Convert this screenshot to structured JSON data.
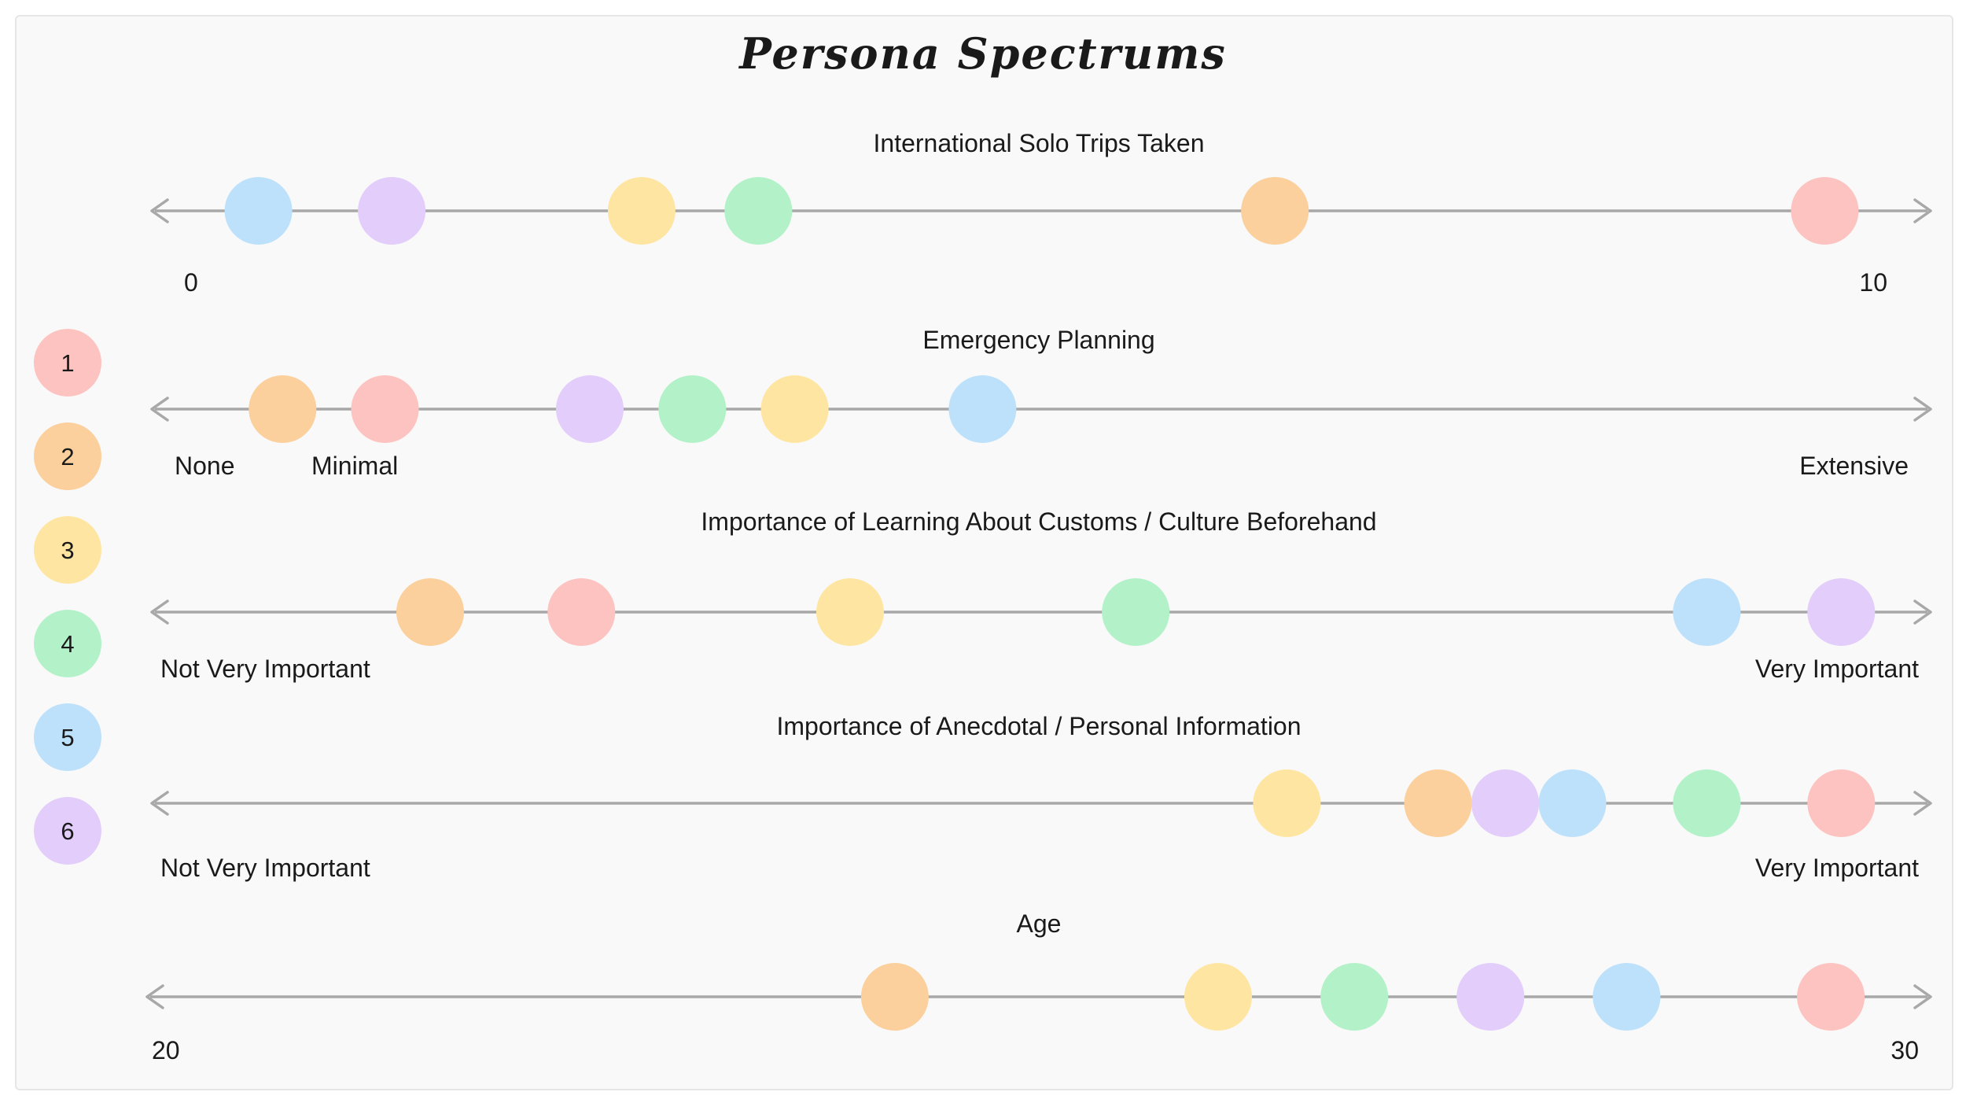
{
  "title": "Persona Spectrums",
  "colors": {
    "1": "#fdc3c0",
    "2": "#fbd09c",
    "3": "#fee6a2",
    "4": "#b3f2c8",
    "5": "#bee1fb",
    "6": "#e2cdfb",
    "axis": "#a8a8a8"
  },
  "legend": [
    {
      "id": "1",
      "label": "1"
    },
    {
      "id": "2",
      "label": "2"
    },
    {
      "id": "3",
      "label": "3"
    },
    {
      "id": "4",
      "label": "4"
    },
    {
      "id": "5",
      "label": "5"
    },
    {
      "id": "6",
      "label": "6"
    }
  ],
  "spectrums": [
    {
      "title": "International Solo Trips Taken",
      "min_label": "0",
      "max_label": "10",
      "positions": {
        "1": 0.97,
        "2": 0.64,
        "3": 0.26,
        "4": 0.33,
        "5": 0.03,
        "6": 0.11
      }
    },
    {
      "title": "Emergency Planning",
      "min_label": "None",
      "mid_label": "Minimal",
      "max_label": "Extensive",
      "positions": {
        "1": 0.12,
        "2": 0.06,
        "3": 0.36,
        "4": 0.3,
        "5": 0.47,
        "6": 0.24
      }
    },
    {
      "title": "Importance of Learning About Customs / Culture Beforehand",
      "min_label": "Not Very Important",
      "max_label": "Very Important",
      "positions": {
        "1": 0.23,
        "2": 0.14,
        "3": 0.39,
        "4": 0.56,
        "5": 0.9,
        "6": 0.98
      }
    },
    {
      "title": "Importance of Anecdotal / Personal Information",
      "min_label": "Not Very Important",
      "max_label": "Very Important",
      "positions": {
        "1": 0.98,
        "2": 0.74,
        "3": 0.65,
        "4": 0.9,
        "5": 0.82,
        "6": 0.78
      }
    },
    {
      "title": "Age",
      "min_label": "20",
      "max_label": "30",
      "positions": {
        "1": 0.97,
        "2": 0.42,
        "3": 0.61,
        "4": 0.69,
        "5": 0.85,
        "6": 0.77
      }
    }
  ]
}
